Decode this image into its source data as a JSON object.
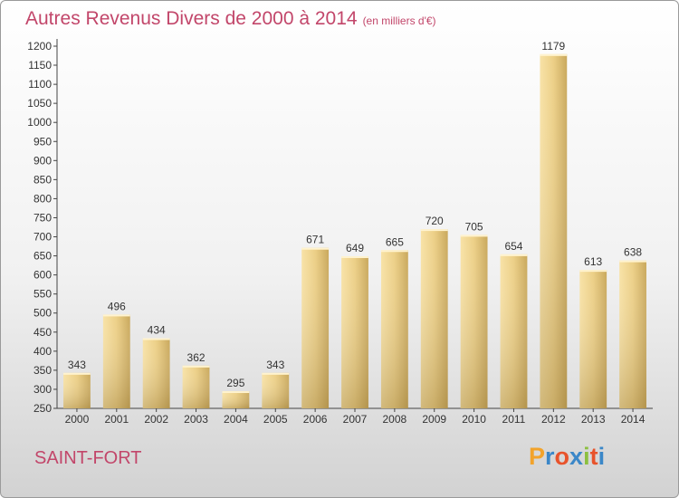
{
  "header": {
    "title": "Autres Revenus Divers de 2000 à 2014",
    "unit": "(en milliers d'€)"
  },
  "footer": {
    "commune": "SAINT-FORT"
  },
  "logo": {
    "letters": [
      "P",
      "r",
      "o",
      "x",
      "i",
      "t",
      "i"
    ],
    "colors": [
      "#f2a32b",
      "#3b87c8",
      "#e8532b",
      "#3b87c8",
      "#8cbf3f",
      "#e8532b",
      "#3b87c8"
    ]
  },
  "chart_data": {
    "type": "bar",
    "categories": [
      "2000",
      "2001",
      "2002",
      "2003",
      "2004",
      "2005",
      "2006",
      "2007",
      "2008",
      "2009",
      "2010",
      "2011",
      "2012",
      "2013",
      "2014"
    ],
    "values": [
      343,
      496,
      434,
      362,
      295,
      343,
      671,
      649,
      665,
      720,
      705,
      654,
      1179,
      613,
      638
    ],
    "ylim": [
      250,
      1200
    ],
    "yticks": [
      250,
      300,
      350,
      400,
      450,
      500,
      550,
      600,
      650,
      700,
      750,
      800,
      850,
      900,
      950,
      1000,
      1050,
      1100,
      1150,
      1200
    ],
    "grid": false,
    "bar_color": "#e2c47c"
  }
}
